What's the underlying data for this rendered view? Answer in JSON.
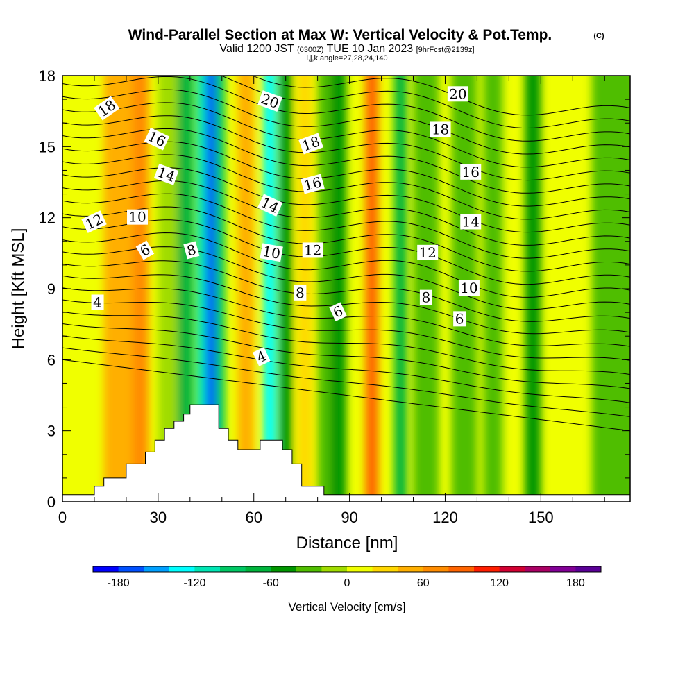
{
  "title": {
    "main": "Wind-Parallel Section at Max W: Vertical Velocity & Pot.Temp.",
    "copyright": "(C)",
    "valid_prefix": "Valid 1200 JST ",
    "valid_utc": "(0300Z)",
    "valid_suffix": " TUE 10 Jan 2023 ",
    "forecast": "[9hrFcst@2139z]",
    "indices": "i,j,k,angle=27,28,24,140"
  },
  "chart_data": {
    "type": "heatmap",
    "xlabel": "Distance [nm]",
    "ylabel": "Height [Kft MSL]",
    "xlim": [
      0,
      178
    ],
    "ylim": [
      0,
      18
    ],
    "x_ticks": [
      0,
      30,
      60,
      90,
      120,
      150
    ],
    "y_ticks": [
      0,
      3,
      6,
      9,
      12,
      15,
      18
    ],
    "colorbar": {
      "label": "Vertical Velocity [cm/s]",
      "ticks": [
        -180,
        -120,
        -60,
        0,
        60,
        120,
        180
      ],
      "levels": [
        -200,
        -180,
        -160,
        -140,
        -120,
        -100,
        -80,
        -60,
        -40,
        -20,
        0,
        20,
        40,
        60,
        80,
        100,
        120,
        140,
        160,
        180,
        200
      ],
      "colors": [
        "#0000ff",
        "#0050ff",
        "#00a0ff",
        "#00ffff",
        "#00e6b4",
        "#00c864",
        "#00b43c",
        "#009600",
        "#50be00",
        "#a0dc00",
        "#f0ff00",
        "#ffd700",
        "#ffaf00",
        "#ff8c00",
        "#ff6400",
        "#ff1e00",
        "#d20032",
        "#aa0064",
        "#820096",
        "#5a0096"
      ]
    },
    "vertical_velocity_bands": [
      {
        "x": 13,
        "w": 10,
        "value": 45
      },
      {
        "x": 22,
        "w": 5,
        "value": 70
      },
      {
        "x": 30,
        "w": 6,
        "value": -20
      },
      {
        "x": 36,
        "w": 5,
        "value": -65
      },
      {
        "x": 42,
        "w": 5,
        "value": -105
      },
      {
        "x": 45,
        "w": 3,
        "value": -165
      },
      {
        "x": 48,
        "w": 3,
        "value": -85
      },
      {
        "x": 55,
        "w": 5,
        "value": 45
      },
      {
        "x": 63,
        "w": 4,
        "value": -135
      },
      {
        "x": 68,
        "w": 4,
        "value": -60
      },
      {
        "x": 74,
        "w": 4,
        "value": 30
      },
      {
        "x": 80,
        "w": 6,
        "value": -25
      },
      {
        "x": 84,
        "w": 5,
        "value": -60
      },
      {
        "x": 95,
        "w": 4,
        "value": 85
      },
      {
        "x": 104,
        "w": 4,
        "value": -75
      },
      {
        "x": 110,
        "w": 8,
        "value": -25
      },
      {
        "x": 122,
        "w": 8,
        "value": -25
      },
      {
        "x": 132,
        "w": 6,
        "value": -40
      },
      {
        "x": 145,
        "w": 5,
        "value": -55
      },
      {
        "x": 166,
        "w": 14,
        "value": -25
      }
    ],
    "terrain_height": [
      [
        0,
        0.3
      ],
      [
        10,
        0.3
      ],
      [
        10,
        0.65
      ],
      [
        13,
        0.65
      ],
      [
        13,
        1.0
      ],
      [
        20,
        1.0
      ],
      [
        20,
        1.6
      ],
      [
        26,
        1.6
      ],
      [
        26,
        2.1
      ],
      [
        29,
        2.1
      ],
      [
        29,
        2.6
      ],
      [
        32,
        2.6
      ],
      [
        32,
        3.1
      ],
      [
        35,
        3.1
      ],
      [
        35,
        3.4
      ],
      [
        38,
        3.4
      ],
      [
        38,
        3.7
      ],
      [
        40,
        3.7
      ],
      [
        40,
        4.1
      ],
      [
        49,
        4.1
      ],
      [
        49,
        3.1
      ],
      [
        52,
        3.1
      ],
      [
        52,
        2.6
      ],
      [
        55,
        2.6
      ],
      [
        55,
        2.2
      ],
      [
        62,
        2.2
      ],
      [
        62,
        2.6
      ],
      [
        69,
        2.6
      ],
      [
        69,
        2.2
      ],
      [
        72,
        2.2
      ],
      [
        72,
        1.6
      ],
      [
        75,
        1.6
      ],
      [
        75,
        0.65
      ],
      [
        82,
        0.65
      ],
      [
        82,
        0.3
      ],
      [
        178,
        0.3
      ]
    ],
    "potential_temperature_labels": [
      {
        "text": "18",
        "x": 14,
        "y": 16.6,
        "rot": -35
      },
      {
        "text": "16",
        "x": 29.5,
        "y": 15.3,
        "rot": 25
      },
      {
        "text": "14",
        "x": 32.5,
        "y": 13.8,
        "rot": 20
      },
      {
        "text": "12",
        "x": 10,
        "y": 11.8,
        "rot": -25
      },
      {
        "text": "10",
        "x": 23.5,
        "y": 12.0,
        "rot": 0
      },
      {
        "text": "6",
        "x": 26,
        "y": 10.6,
        "rot": -30
      },
      {
        "text": "8",
        "x": 40.5,
        "y": 10.6,
        "rot": -15
      },
      {
        "text": "4",
        "x": 11,
        "y": 8.4,
        "rot": 0
      },
      {
        "text": "20",
        "x": 65,
        "y": 16.9,
        "rot": 20
      },
      {
        "text": "18",
        "x": 78,
        "y": 15.1,
        "rot": -20
      },
      {
        "text": "16",
        "x": 78.5,
        "y": 13.4,
        "rot": -15
      },
      {
        "text": "14",
        "x": 65,
        "y": 12.5,
        "rot": 25
      },
      {
        "text": "10",
        "x": 65.5,
        "y": 10.5,
        "rot": 10
      },
      {
        "text": "12",
        "x": 78.5,
        "y": 10.6,
        "rot": 0
      },
      {
        "text": "8",
        "x": 74.5,
        "y": 8.8,
        "rot": 0
      },
      {
        "text": "6",
        "x": 86.5,
        "y": 8.0,
        "rot": -25
      },
      {
        "text": "4",
        "x": 62.5,
        "y": 6.1,
        "rot": -25
      },
      {
        "text": "20",
        "x": 124,
        "y": 17.2,
        "rot": 0
      },
      {
        "text": "18",
        "x": 118.5,
        "y": 15.7,
        "rot": 0
      },
      {
        "text": "16",
        "x": 128,
        "y": 13.9,
        "rot": 0
      },
      {
        "text": "14",
        "x": 128,
        "y": 11.8,
        "rot": 0
      },
      {
        "text": "12",
        "x": 114.5,
        "y": 10.5,
        "rot": 0
      },
      {
        "text": "10",
        "x": 127.5,
        "y": 9.0,
        "rot": 0
      },
      {
        "text": "8",
        "x": 114,
        "y": 8.6,
        "rot": 0
      },
      {
        "text": "6",
        "x": 124.5,
        "y": 7.7,
        "rot": 0
      }
    ]
  }
}
